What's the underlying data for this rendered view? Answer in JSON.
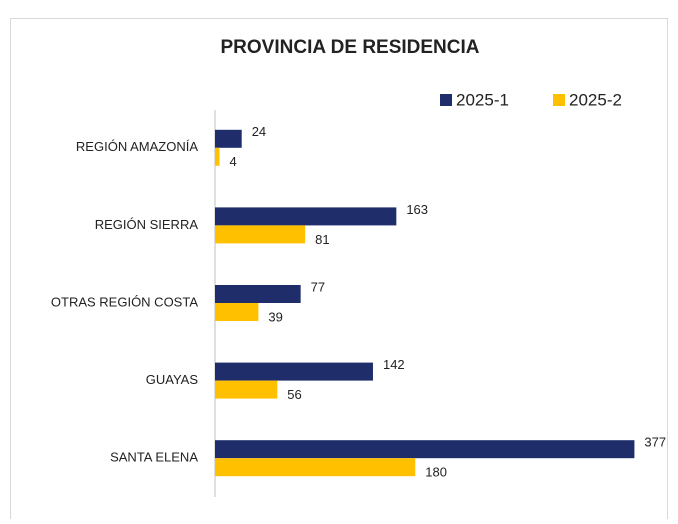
{
  "chart_data": {
    "type": "barh",
    "title": "PROVINCIA DE RESIDENCIA",
    "categories": [
      "REGIÓN AMAZONÍA",
      "REGIÓN SIERRA",
      "OTRAS REGIÓN COSTA",
      "GUAYAS",
      "SANTA ELENA"
    ],
    "series": [
      {
        "name": "2025-1",
        "color": "#1f2d6b",
        "values": [
          24,
          163,
          77,
          142,
          377
        ]
      },
      {
        "name": "2025-2",
        "color": "#ffc000",
        "values": [
          4,
          81,
          39,
          56,
          180
        ]
      }
    ],
    "xlim": [
      0,
      400
    ],
    "grid": false,
    "legend": "top-right"
  }
}
